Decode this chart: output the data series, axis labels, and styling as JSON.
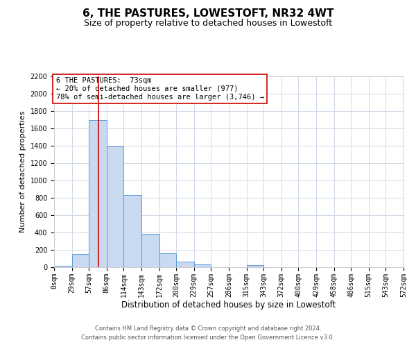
{
  "title": "6, THE PASTURES, LOWESTOFT, NR32 4WT",
  "subtitle": "Size of property relative to detached houses in Lowestoft",
  "xlabel": "Distribution of detached houses by size in Lowestoft",
  "ylabel": "Number of detached properties",
  "bar_edges": [
    0,
    29,
    57,
    86,
    114,
    143,
    172,
    200,
    229,
    257,
    286,
    315,
    343,
    372,
    400,
    429,
    458,
    486,
    515,
    543,
    572
  ],
  "bar_heights": [
    20,
    155,
    1700,
    1390,
    830,
    385,
    160,
    65,
    30,
    0,
    0,
    25,
    0,
    0,
    0,
    0,
    0,
    0,
    0,
    0
  ],
  "bar_color": "#c9d9f0",
  "bar_edgecolor": "#5b9bd5",
  "property_line_x": 73,
  "property_line_color": "#cc0000",
  "ylim": [
    0,
    2200
  ],
  "yticks": [
    0,
    200,
    400,
    600,
    800,
    1000,
    1200,
    1400,
    1600,
    1800,
    2000,
    2200
  ],
  "xtick_labels": [
    "0sqm",
    "29sqm",
    "57sqm",
    "86sqm",
    "114sqm",
    "143sqm",
    "172sqm",
    "200sqm",
    "229sqm",
    "257sqm",
    "286sqm",
    "315sqm",
    "343sqm",
    "372sqm",
    "400sqm",
    "429sqm",
    "458sqm",
    "486sqm",
    "515sqm",
    "543sqm",
    "572sqm"
  ],
  "annotation_box_text": "6 THE PASTURES:  73sqm\n← 20% of detached houses are smaller (977)\n78% of semi-detached houses are larger (3,746) →",
  "grid_color": "#d0d8e8",
  "background_color": "#ffffff",
  "footnote1": "Contains HM Land Registry data © Crown copyright and database right 2024.",
  "footnote2": "Contains public sector information licensed under the Open Government Licence v3.0.",
  "title_fontsize": 11,
  "subtitle_fontsize": 9,
  "xlabel_fontsize": 8.5,
  "ylabel_fontsize": 8,
  "tick_fontsize": 7,
  "annotation_fontsize": 7.5,
  "footnote_fontsize": 6
}
